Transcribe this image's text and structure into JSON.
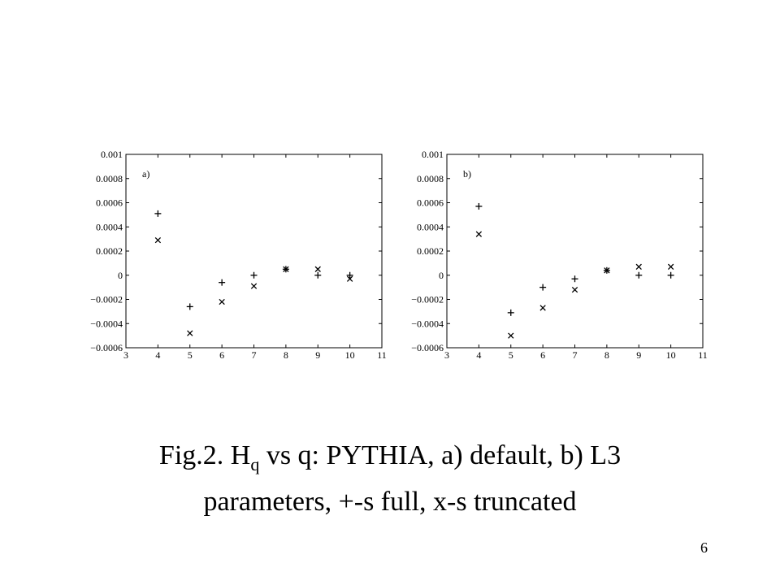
{
  "caption": {
    "line1_prefix": "Fig.2. H",
    "line1_subscript": "q",
    "line1_suffix": " vs q: PYTHIA, a) default, b) L3",
    "line2": "parameters, +-s full, x-s truncated"
  },
  "page_number": "6",
  "chart_data": [
    {
      "type": "scatter",
      "panel_label": "a)",
      "xlim": [
        3,
        11
      ],
      "ylim": [
        -0.0006,
        0.001
      ],
      "x_ticks": [
        3,
        4,
        5,
        6,
        7,
        8,
        9,
        10,
        11
      ],
      "y_ticks": [
        -0.0006,
        -0.0004,
        -0.0002,
        0,
        0.0002,
        0.0004,
        0.0006,
        0.0008,
        0.001
      ],
      "x_tick_labels": [
        "3",
        "4",
        "5",
        "6",
        "7",
        "8",
        "9",
        "10",
        "11"
      ],
      "y_tick_labels": [
        "−0.0006",
        "−0.0004",
        "−0.0002",
        "0",
        "0.0002",
        "0.0004",
        "0.0006",
        "0.0008",
        "0.001"
      ],
      "grid": false,
      "series": [
        {
          "marker": "+",
          "x": [
            4,
            5,
            6,
            7,
            8,
            9,
            10
          ],
          "y": [
            0.00051,
            -0.00026,
            -6e-05,
            0.0,
            5e-05,
            0.0,
            0.0
          ]
        },
        {
          "marker": "x",
          "x": [
            4,
            5,
            6,
            7,
            8,
            9,
            10
          ],
          "y": [
            0.00029,
            -0.00048,
            -0.00022,
            -9e-05,
            5e-05,
            5e-05,
            -3e-05
          ]
        }
      ]
    },
    {
      "type": "scatter",
      "panel_label": "b)",
      "xlim": [
        3,
        11
      ],
      "ylim": [
        -0.0006,
        0.001
      ],
      "x_ticks": [
        3,
        4,
        5,
        6,
        7,
        8,
        9,
        10,
        11
      ],
      "y_ticks": [
        -0.0006,
        -0.0004,
        -0.0002,
        0,
        0.0002,
        0.0004,
        0.0006,
        0.0008,
        0.001
      ],
      "x_tick_labels": [
        "3",
        "4",
        "5",
        "6",
        "7",
        "8",
        "9",
        "10",
        "11"
      ],
      "y_tick_labels": [
        "−0.0006",
        "−0.0004",
        "−0.0002",
        "0",
        "0.0002",
        "0.0004",
        "0.0006",
        "0.0008",
        "0.001"
      ],
      "grid": false,
      "series": [
        {
          "marker": "+",
          "x": [
            4,
            5,
            6,
            7,
            8,
            9,
            10
          ],
          "y": [
            0.00057,
            -0.00031,
            -0.0001,
            -3e-05,
            4e-05,
            0.0,
            0.0
          ]
        },
        {
          "marker": "x",
          "x": [
            4,
            5,
            6,
            7,
            8,
            9,
            10
          ],
          "y": [
            0.00034,
            -0.0005,
            -0.00027,
            -0.00012,
            4e-05,
            7e-05,
            7e-05
          ]
        }
      ]
    }
  ]
}
